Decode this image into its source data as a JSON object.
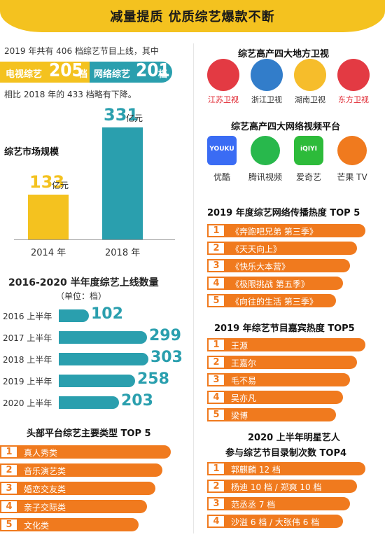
{
  "banner": {
    "title": "减量提质  优质综艺爆款不断"
  },
  "intro": {
    "line1": "2019 年共有 406 档综艺节目上线，其中",
    "tv_label": "电视综艺",
    "tv_num": "205",
    "tv_unit": "档",
    "net_label": "网络综艺",
    "net_num": "201",
    "net_unit": "档",
    "line2": "相比 2018 年的 433 档略有下降。"
  },
  "market": {
    "title": "综艺市场规模",
    "bars": [
      {
        "year": "2014 年",
        "value": 133,
        "unit": "亿元",
        "color": "#f4c21f"
      },
      {
        "year": "2018 年",
        "value": 331,
        "unit": "亿元",
        "color": "#2a9fae"
      }
    ]
  },
  "halfyear": {
    "title": "2016-2020 半年度综艺上线数量",
    "unit": "（单位：档）",
    "rows": [
      {
        "label": "2016 上半年",
        "value": 102
      },
      {
        "label": "2017 上半年",
        "value": 299
      },
      {
        "label": "2018 上半年",
        "value": 303
      },
      {
        "label": "2019 上半年",
        "value": 258
      },
      {
        "label": "2020 上半年",
        "value": 203
      }
    ]
  },
  "types": {
    "title": "头部平台综艺主要类型 TOP 5",
    "items": [
      "真人秀类",
      "音乐演艺类",
      "婚恋交友类",
      "亲子交际类",
      "文化类"
    ]
  },
  "tv_stations": {
    "title": "综艺高产四大地方卫视",
    "items": [
      {
        "name": "江苏卫视",
        "icon": "jiangsu-tv-logo",
        "color": "#e0252f"
      },
      {
        "name": "浙江卫视",
        "icon": "zhejiang-tv-logo",
        "color": "#1c6fc4"
      },
      {
        "name": "湖南卫视",
        "icon": "hunan-tv-logo",
        "color": "#f5b614"
      },
      {
        "name": "东方卫视",
        "icon": "dragon-tv-logo",
        "color": "#e0252f"
      }
    ]
  },
  "platforms": {
    "title": "综艺高产四大网络视频平台",
    "items": [
      {
        "name": "优酷",
        "icon": "youku-logo",
        "brand": "YOUKU"
      },
      {
        "name": "腾讯视频",
        "icon": "tencent-video-logo"
      },
      {
        "name": "爱奇艺",
        "icon": "iqiyi-logo",
        "brand": "iQIYI"
      },
      {
        "name": "芒果 TV",
        "icon": "mango-tv-logo"
      }
    ]
  },
  "top_net": {
    "title": "2019 年度综艺网络传播热度 TOP 5",
    "items": [
      "《奔跑吧兄弟 第三季》",
      "《天天向上》",
      "《快乐大本营》",
      "《极限挑战 第五季》",
      "《向往的生活 第三季》"
    ]
  },
  "top_guests": {
    "title": "2019 年综艺节目嘉宾热度 TOP5",
    "items": [
      "王源",
      "王嘉尔",
      "毛不易",
      "吴亦凡",
      "梁博"
    ]
  },
  "top_stars": {
    "title1": "2020 上半年明星艺人",
    "title2": "参与综艺节目录制次数 TOP4",
    "items": [
      "郭麒麟 12 档",
      "杨迪 10 档 / 郑爽 10 档",
      "范丞丞 7 档",
      "沙溢 6 档 / 大张伟 6 档"
    ]
  },
  "colors": {
    "yellow": "#f4c21f",
    "teal": "#2a9fae",
    "orange": "#f07a1e"
  }
}
